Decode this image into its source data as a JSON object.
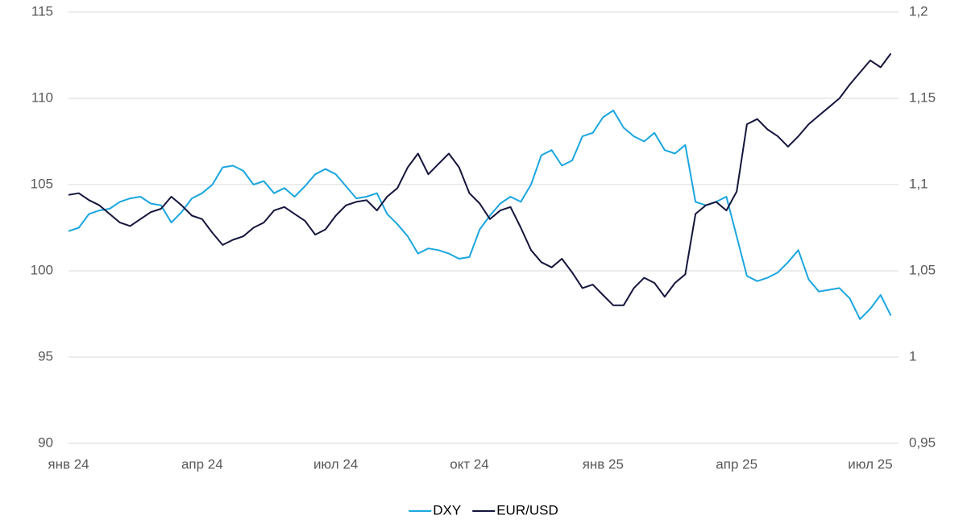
{
  "chart_data": {
    "type": "line",
    "categories": [
      "янв 24",
      null,
      null,
      null,
      null,
      null,
      null,
      null,
      null,
      null,
      null,
      null,
      null,
      "апр 24",
      null,
      null,
      null,
      null,
      null,
      null,
      null,
      null,
      null,
      null,
      null,
      null,
      "июл 24",
      null,
      null,
      null,
      null,
      null,
      null,
      null,
      null,
      null,
      null,
      null,
      null,
      "окт 24",
      null,
      null,
      null,
      null,
      null,
      null,
      null,
      null,
      null,
      null,
      null,
      null,
      "янв 25",
      null,
      null,
      null,
      null,
      null,
      null,
      null,
      null,
      null,
      null,
      null,
      null,
      "апр 25",
      null,
      null,
      null,
      null,
      null,
      null,
      null,
      null,
      null,
      null,
      null,
      null,
      "июл 25",
      null,
      null
    ],
    "series": [
      {
        "name": "DXY",
        "color": "#1ba6df",
        "values": [
          102.3,
          102.5,
          103.3,
          103.5,
          103.6,
          104.0,
          104.2,
          104.3,
          103.9,
          103.8,
          102.8,
          103.4,
          104.2,
          104.5,
          105.0,
          106.0,
          106.1,
          105.8,
          105.0,
          105.2,
          104.5,
          104.8,
          104.3,
          104.9,
          105.6,
          105.9,
          105.6,
          104.9,
          104.2,
          104.3,
          104.5,
          103.3,
          102.7,
          102.0,
          101.0,
          101.3,
          101.2,
          101.0,
          100.7,
          100.8,
          102.4,
          103.2,
          103.9,
          104.3,
          104.0,
          105.0,
          106.7,
          107.0,
          106.1,
          106.4,
          107.8,
          108.0,
          108.9,
          109.3,
          108.3,
          107.8,
          107.5,
          108.0,
          107.0,
          106.8,
          107.3,
          104.0,
          103.8,
          104.0,
          104.3,
          102.0,
          99.7,
          99.4,
          99.6,
          99.9,
          100.5,
          101.2,
          99.5,
          98.8,
          98.9,
          99.0,
          98.4,
          97.2,
          97.8,
          98.6,
          97.4
        ]
      },
      {
        "name": "EUR/USD",
        "color": "#15153d",
        "axis": "y2",
        "values": [
          1.094,
          1.095,
          1.091,
          1.088,
          1.083,
          1.078,
          1.076,
          1.08,
          1.084,
          1.086,
          1.093,
          1.088,
          1.082,
          1.08,
          1.072,
          1.065,
          1.068,
          1.07,
          1.075,
          1.078,
          1.085,
          1.087,
          1.083,
          1.079,
          1.071,
          1.074,
          1.082,
          1.088,
          1.09,
          1.091,
          1.085,
          1.093,
          1.098,
          1.11,
          1.118,
          1.106,
          1.112,
          1.118,
          1.11,
          1.095,
          1.089,
          1.08,
          1.085,
          1.087,
          1.075,
          1.062,
          1.055,
          1.052,
          1.057,
          1.049,
          1.04,
          1.042,
          1.036,
          1.03,
          1.03,
          1.04,
          1.046,
          1.043,
          1.035,
          1.043,
          1.048,
          1.083,
          1.088,
          1.09,
          1.085,
          1.096,
          1.135,
          1.138,
          1.132,
          1.128,
          1.122,
          1.128,
          1.135,
          1.14,
          1.145,
          1.15,
          1.158,
          1.165,
          1.172,
          1.168,
          1.176
        ]
      }
    ],
    "ylim": [
      90,
      115
    ],
    "yticks": [
      90,
      95,
      100,
      105,
      110,
      115
    ],
    "y2lim": [
      0.95,
      1.2
    ],
    "y2ticks": [
      {
        "value": 0.95,
        "label": "0,95"
      },
      1,
      {
        "value": 1.05,
        "label": "1,05"
      },
      {
        "value": 1.1,
        "label": "1,1"
      },
      {
        "value": 1.15,
        "label": "1,15"
      },
      {
        "value": 1.2,
        "label": "1,2"
      }
    ],
    "grid": true,
    "legend": "bottom"
  }
}
